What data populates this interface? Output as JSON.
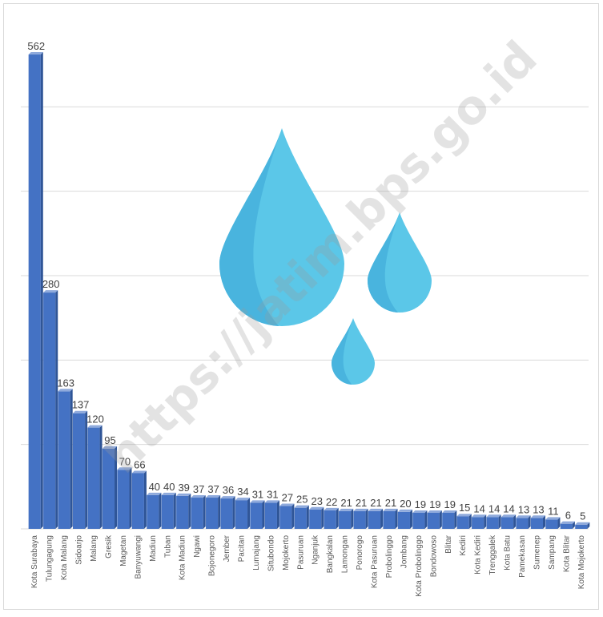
{
  "watermark_text": "https://jatim.bps.go.id",
  "colors": {
    "bar_front": "#4472c4",
    "bar_side": "#2f5597",
    "bar_top": "#8faadc",
    "grid": "#d9d9d9",
    "drop_main": "#5bc7e8",
    "drop_shade": "#49b4de"
  },
  "icons": [
    "water-drop-icon",
    "water-drop-icon",
    "water-drop-icon"
  ],
  "chart_data": {
    "type": "bar",
    "title": "",
    "xlabel": "",
    "ylabel": "",
    "ylim": [
      0,
      600
    ],
    "grid": true,
    "categories": [
      "Kota Surabaya",
      "Tulungagung",
      "Kota Malang",
      "Sidoarjo",
      "Malang",
      "Gresik",
      "Magetan",
      "Banyuwangi",
      "Madiun",
      "Tuban",
      "Kota Madiun",
      "Ngawi",
      "Bojonegoro",
      "Jember",
      "Pacitan",
      "Lumajang",
      "Situbondo",
      "Mojokerto",
      "Pasuruan",
      "Nganjuk",
      "Bangkalan",
      "Lamongan",
      "Ponorogo",
      "Kota Pasuruan",
      "Probolinggo",
      "Jombang",
      "Kota Probolinggo",
      "Bondowoso",
      "Blitar",
      "Kediri",
      "Kota Kediri",
      "Trenggalek",
      "Kota Batu",
      "Pamekasan",
      "Sumenep",
      "Sampang",
      "Kota Blitar",
      "Kota Mojokerto"
    ],
    "values": [
      562,
      280,
      163,
      137,
      120,
      95,
      70,
      66,
      40,
      40,
      39,
      37,
      37,
      36,
      34,
      31,
      31,
      27,
      25,
      23,
      22,
      21,
      21,
      21,
      21,
      20,
      19,
      19,
      19,
      15,
      14,
      14,
      14,
      13,
      13,
      11,
      6,
      5
    ],
    "data_labels": [
      "562",
      "280",
      "163",
      "137",
      "120",
      "95",
      "70",
      "66",
      "40",
      "40",
      "39",
      "37",
      "37",
      "36",
      "34",
      "31",
      "31",
      "27",
      "25",
      "23",
      "22",
      "21",
      "21",
      "21",
      "21",
      "20",
      "19",
      "19",
      "19",
      "15",
      "14",
      "14",
      "14",
      "13",
      "13",
      "11",
      "6",
      "5"
    ]
  }
}
